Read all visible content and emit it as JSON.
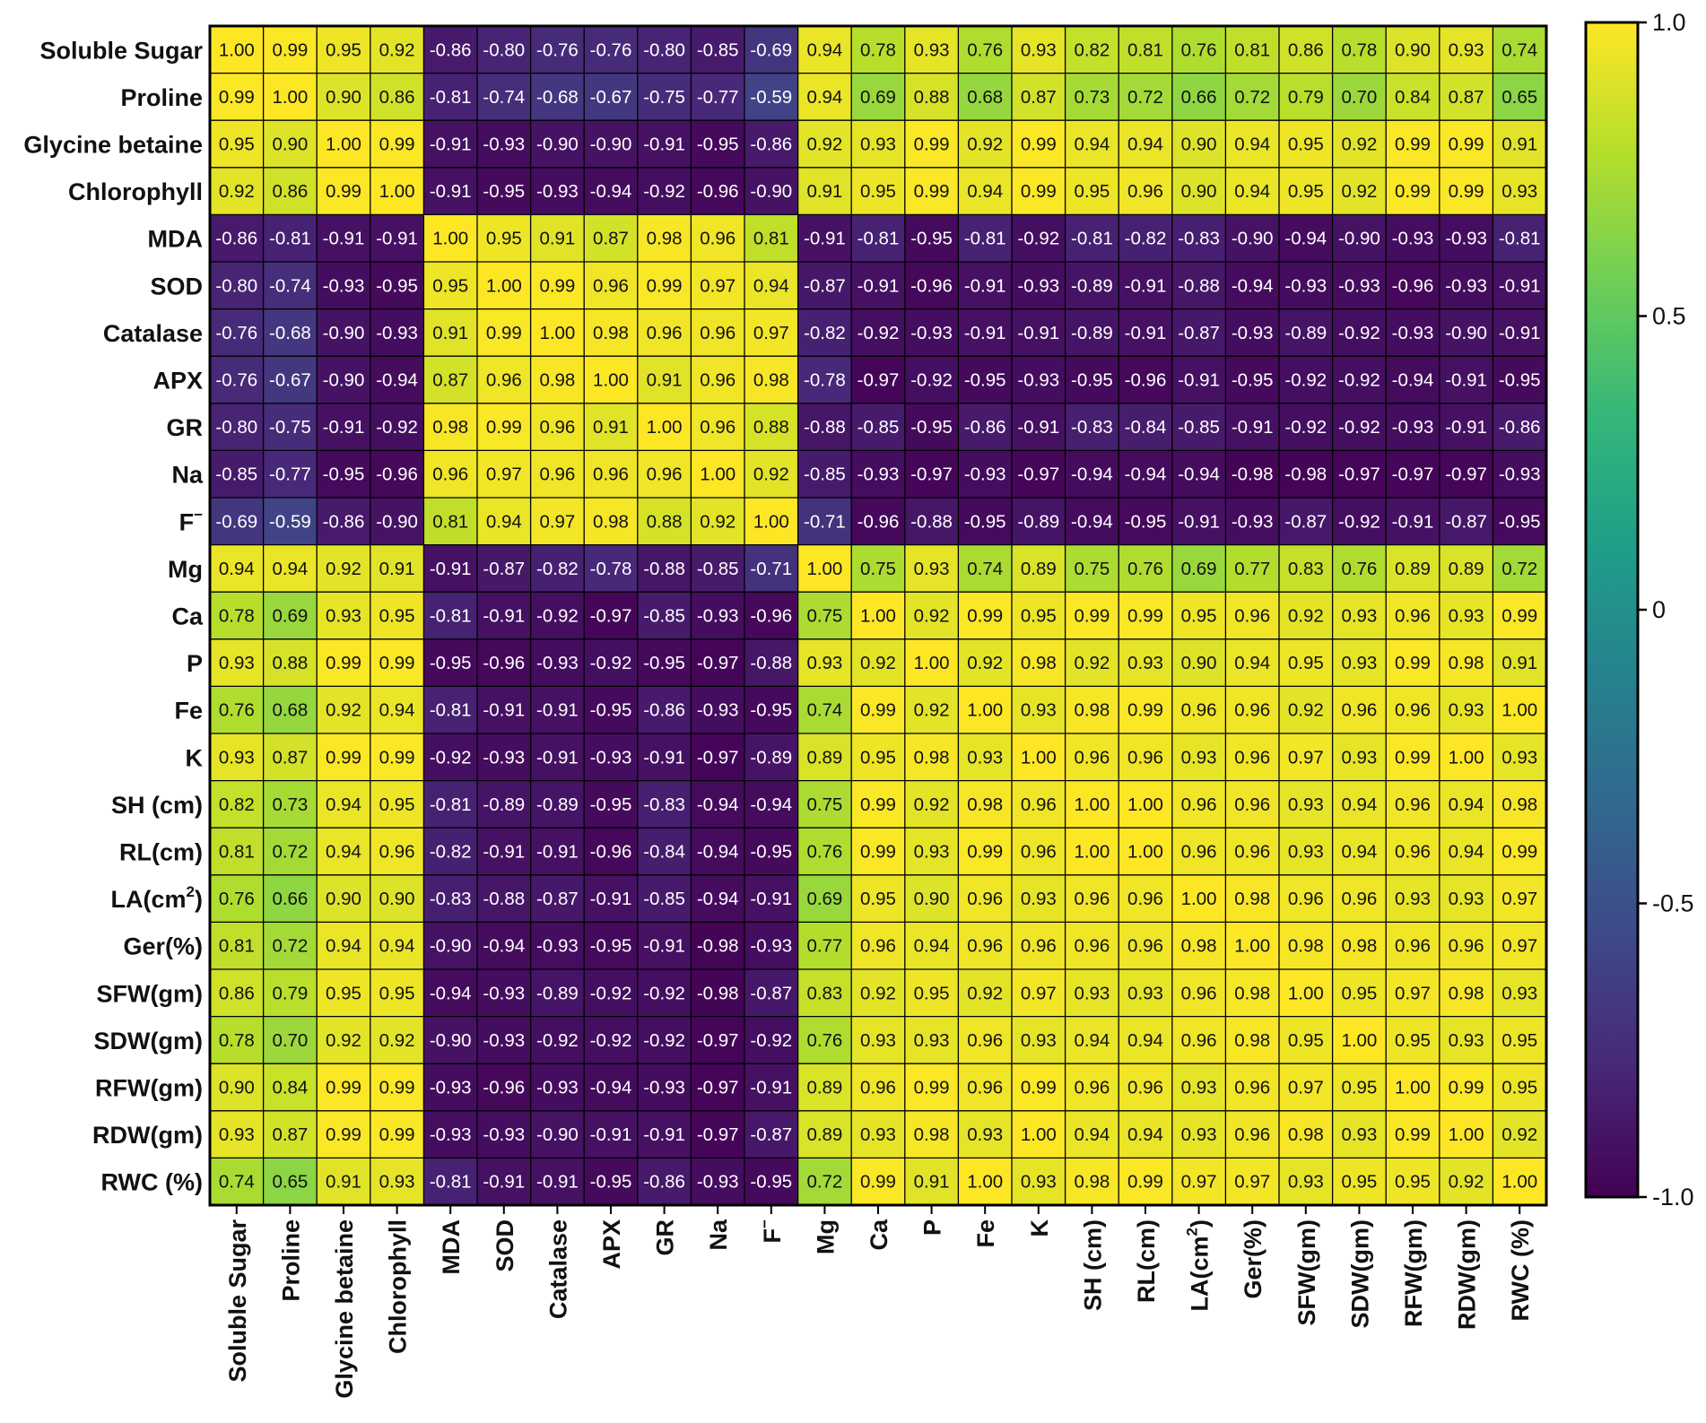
{
  "chart_data": {
    "type": "heatmap",
    "title": "",
    "xlabel": "",
    "ylabel": "",
    "variables": [
      {
        "label": "Soluble Sugar"
      },
      {
        "label": "Proline"
      },
      {
        "label": "Glycine betaine"
      },
      {
        "label": "Chlorophyll"
      },
      {
        "label": "MDA"
      },
      {
        "label": "SOD"
      },
      {
        "label": "Catalase"
      },
      {
        "label": "APX"
      },
      {
        "label": "GR"
      },
      {
        "label": "Na"
      },
      {
        "label": "F",
        "sup": "−"
      },
      {
        "label": "Mg"
      },
      {
        "label": "Ca"
      },
      {
        "label": "P"
      },
      {
        "label": "Fe"
      },
      {
        "label": "K"
      },
      {
        "label": "SH (cm)"
      },
      {
        "label": "RL(cm)"
      },
      {
        "label": "LA(cm",
        "sup": "2",
        "suffix": ")"
      },
      {
        "label": "Ger(%)"
      },
      {
        "label": "SFW(gm)"
      },
      {
        "label": "SDW(gm)"
      },
      {
        "label": "RFW(gm)"
      },
      {
        "label": "RDW(gm)"
      },
      {
        "label": "RWC (%)"
      }
    ],
    "matrix": [
      [
        1.0,
        0.99,
        0.95,
        0.92,
        -0.86,
        -0.8,
        -0.76,
        -0.76,
        -0.8,
        -0.85,
        -0.69,
        0.94,
        0.78,
        0.93,
        0.76,
        0.93,
        0.82,
        0.81,
        0.76,
        0.81,
        0.86,
        0.78,
        0.9,
        0.93,
        0.74
      ],
      [
        0.99,
        1.0,
        0.9,
        0.86,
        -0.81,
        -0.74,
        -0.68,
        -0.67,
        -0.75,
        -0.77,
        -0.59,
        0.94,
        0.69,
        0.88,
        0.68,
        0.87,
        0.73,
        0.72,
        0.66,
        0.72,
        0.79,
        0.7,
        0.84,
        0.87,
        0.65
      ],
      [
        0.95,
        0.9,
        1.0,
        0.99,
        -0.91,
        -0.93,
        -0.9,
        -0.9,
        -0.91,
        -0.95,
        -0.86,
        0.92,
        0.93,
        0.99,
        0.92,
        0.99,
        0.94,
        0.94,
        0.9,
        0.94,
        0.95,
        0.92,
        0.99,
        0.99,
        0.91
      ],
      [
        0.92,
        0.86,
        0.99,
        1.0,
        -0.91,
        -0.95,
        -0.93,
        -0.94,
        -0.92,
        -0.96,
        -0.9,
        0.91,
        0.95,
        0.99,
        0.94,
        0.99,
        0.95,
        0.96,
        0.9,
        0.94,
        0.95,
        0.92,
        0.99,
        0.99,
        0.93
      ],
      [
        -0.86,
        -0.81,
        -0.91,
        -0.91,
        1.0,
        0.95,
        0.91,
        0.87,
        0.98,
        0.96,
        0.81,
        -0.91,
        -0.81,
        -0.95,
        -0.81,
        -0.92,
        -0.81,
        -0.82,
        -0.83,
        -0.9,
        -0.94,
        -0.9,
        -0.93,
        -0.93,
        -0.81
      ],
      [
        -0.8,
        -0.74,
        -0.93,
        -0.95,
        0.95,
        1.0,
        0.99,
        0.96,
        0.99,
        0.97,
        0.94,
        -0.87,
        -0.91,
        -0.96,
        -0.91,
        -0.93,
        -0.89,
        -0.91,
        -0.88,
        -0.94,
        -0.93,
        -0.93,
        -0.96,
        -0.93,
        -0.91
      ],
      [
        -0.76,
        -0.68,
        -0.9,
        -0.93,
        0.91,
        0.99,
        1.0,
        0.98,
        0.96,
        0.96,
        0.97,
        -0.82,
        -0.92,
        -0.93,
        -0.91,
        -0.91,
        -0.89,
        -0.91,
        -0.87,
        -0.93,
        -0.89,
        -0.92,
        -0.93,
        -0.9,
        -0.91
      ],
      [
        -0.76,
        -0.67,
        -0.9,
        -0.94,
        0.87,
        0.96,
        0.98,
        1.0,
        0.91,
        0.96,
        0.98,
        -0.78,
        -0.97,
        -0.92,
        -0.95,
        -0.93,
        -0.95,
        -0.96,
        -0.91,
        -0.95,
        -0.92,
        -0.92,
        -0.94,
        -0.91,
        -0.95
      ],
      [
        -0.8,
        -0.75,
        -0.91,
        -0.92,
        0.98,
        0.99,
        0.96,
        0.91,
        1.0,
        0.96,
        0.88,
        -0.88,
        -0.85,
        -0.95,
        -0.86,
        -0.91,
        -0.83,
        -0.84,
        -0.85,
        -0.91,
        -0.92,
        -0.92,
        -0.93,
        -0.91,
        -0.86
      ],
      [
        -0.85,
        -0.77,
        -0.95,
        -0.96,
        0.96,
        0.97,
        0.96,
        0.96,
        0.96,
        1.0,
        0.92,
        -0.85,
        -0.93,
        -0.97,
        -0.93,
        -0.97,
        -0.94,
        -0.94,
        -0.94,
        -0.98,
        -0.98,
        -0.97,
        -0.97,
        -0.97,
        -0.93
      ],
      [
        -0.69,
        -0.59,
        -0.86,
        -0.9,
        0.81,
        0.94,
        0.97,
        0.98,
        0.88,
        0.92,
        1.0,
        -0.71,
        -0.96,
        -0.88,
        -0.95,
        -0.89,
        -0.94,
        -0.95,
        -0.91,
        -0.93,
        -0.87,
        -0.92,
        -0.91,
        -0.87,
        -0.95
      ],
      [
        0.94,
        0.94,
        0.92,
        0.91,
        -0.91,
        -0.87,
        -0.82,
        -0.78,
        -0.88,
        -0.85,
        -0.71,
        1.0,
        0.75,
        0.93,
        0.74,
        0.89,
        0.75,
        0.76,
        0.69,
        0.77,
        0.83,
        0.76,
        0.89,
        0.89,
        0.72
      ],
      [
        0.78,
        0.69,
        0.93,
        0.95,
        -0.81,
        -0.91,
        -0.92,
        -0.97,
        -0.85,
        -0.93,
        -0.96,
        0.75,
        1.0,
        0.92,
        0.99,
        0.95,
        0.99,
        0.99,
        0.95,
        0.96,
        0.92,
        0.93,
        0.96,
        0.93,
        0.99
      ],
      [
        0.93,
        0.88,
        0.99,
        0.99,
        -0.95,
        -0.96,
        -0.93,
        -0.92,
        -0.95,
        -0.97,
        -0.88,
        0.93,
        0.92,
        1.0,
        0.92,
        0.98,
        0.92,
        0.93,
        0.9,
        0.94,
        0.95,
        0.93,
        0.99,
        0.98,
        0.91
      ],
      [
        0.76,
        0.68,
        0.92,
        0.94,
        -0.81,
        -0.91,
        -0.91,
        -0.95,
        -0.86,
        -0.93,
        -0.95,
        0.74,
        0.99,
        0.92,
        1.0,
        0.93,
        0.98,
        0.99,
        0.96,
        0.96,
        0.92,
        0.96,
        0.96,
        0.93,
        1.0
      ],
      [
        0.93,
        0.87,
        0.99,
        0.99,
        -0.92,
        -0.93,
        -0.91,
        -0.93,
        -0.91,
        -0.97,
        -0.89,
        0.89,
        0.95,
        0.98,
        0.93,
        1.0,
        0.96,
        0.96,
        0.93,
        0.96,
        0.97,
        0.93,
        0.99,
        1.0,
        0.93
      ],
      [
        0.82,
        0.73,
        0.94,
        0.95,
        -0.81,
        -0.89,
        -0.89,
        -0.95,
        -0.83,
        -0.94,
        -0.94,
        0.75,
        0.99,
        0.92,
        0.98,
        0.96,
        1.0,
        1.0,
        0.96,
        0.96,
        0.93,
        0.94,
        0.96,
        0.94,
        0.98
      ],
      [
        0.81,
        0.72,
        0.94,
        0.96,
        -0.82,
        -0.91,
        -0.91,
        -0.96,
        -0.84,
        -0.94,
        -0.95,
        0.76,
        0.99,
        0.93,
        0.99,
        0.96,
        1.0,
        1.0,
        0.96,
        0.96,
        0.93,
        0.94,
        0.96,
        0.94,
        0.99
      ],
      [
        0.76,
        0.66,
        0.9,
        0.9,
        -0.83,
        -0.88,
        -0.87,
        -0.91,
        -0.85,
        -0.94,
        -0.91,
        0.69,
        0.95,
        0.9,
        0.96,
        0.93,
        0.96,
        0.96,
        1.0,
        0.98,
        0.96,
        0.96,
        0.93,
        0.93,
        0.97
      ],
      [
        0.81,
        0.72,
        0.94,
        0.94,
        -0.9,
        -0.94,
        -0.93,
        -0.95,
        -0.91,
        -0.98,
        -0.93,
        0.77,
        0.96,
        0.94,
        0.96,
        0.96,
        0.96,
        0.96,
        0.98,
        1.0,
        0.98,
        0.98,
        0.96,
        0.96,
        0.97
      ],
      [
        0.86,
        0.79,
        0.95,
        0.95,
        -0.94,
        -0.93,
        -0.89,
        -0.92,
        -0.92,
        -0.98,
        -0.87,
        0.83,
        0.92,
        0.95,
        0.92,
        0.97,
        0.93,
        0.93,
        0.96,
        0.98,
        1.0,
        0.95,
        0.97,
        0.98,
        0.93
      ],
      [
        0.78,
        0.7,
        0.92,
        0.92,
        -0.9,
        -0.93,
        -0.92,
        -0.92,
        -0.92,
        -0.97,
        -0.92,
        0.76,
        0.93,
        0.93,
        0.96,
        0.93,
        0.94,
        0.94,
        0.96,
        0.98,
        0.95,
        1.0,
        0.95,
        0.93,
        0.95
      ],
      [
        0.9,
        0.84,
        0.99,
        0.99,
        -0.93,
        -0.96,
        -0.93,
        -0.94,
        -0.93,
        -0.97,
        -0.91,
        0.89,
        0.96,
        0.99,
        0.96,
        0.99,
        0.96,
        0.96,
        0.93,
        0.96,
        0.97,
        0.95,
        1.0,
        0.99,
        0.95
      ],
      [
        0.93,
        0.87,
        0.99,
        0.99,
        -0.93,
        -0.93,
        -0.9,
        -0.91,
        -0.91,
        -0.97,
        -0.87,
        0.89,
        0.93,
        0.98,
        0.93,
        1.0,
        0.94,
        0.94,
        0.93,
        0.96,
        0.98,
        0.93,
        0.99,
        1.0,
        0.92
      ],
      [
        0.74,
        0.65,
        0.91,
        0.93,
        -0.81,
        -0.91,
        -0.91,
        -0.95,
        -0.86,
        -0.93,
        -0.95,
        0.72,
        0.99,
        0.91,
        1.0,
        0.93,
        0.98,
        0.99,
        0.97,
        0.97,
        0.93,
        0.95,
        0.95,
        0.92,
        1.0
      ]
    ],
    "value_format": "2 decimals",
    "colorscale": {
      "name": "viridis",
      "range": [
        -1.0,
        1.0
      ],
      "stops": [
        "#440154",
        "#482878",
        "#3e4989",
        "#31688e",
        "#26828e",
        "#1f9e89",
        "#35b779",
        "#6ece58",
        "#b5de2b",
        "#fde725"
      ],
      "ticks": [
        {
          "value": 1.0,
          "label": "1.0"
        },
        {
          "value": 0.5,
          "label": "0.5"
        },
        {
          "value": 0.0,
          "label": "0"
        },
        {
          "value": -0.5,
          "label": "-0.5"
        },
        {
          "value": -1.0,
          "label": "-1.0"
        }
      ]
    }
  }
}
